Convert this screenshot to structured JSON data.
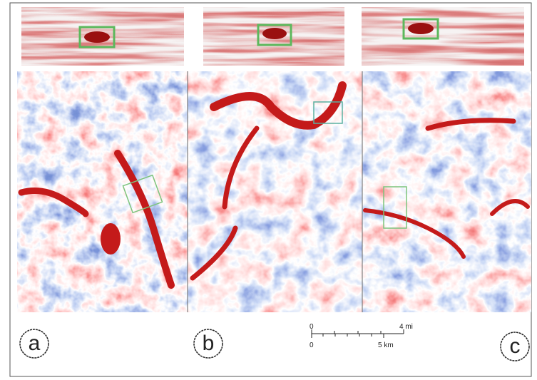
{
  "panels": [
    {
      "label": "a"
    },
    {
      "label": "b"
    },
    {
      "label": "c"
    }
  ],
  "scale_bar": {
    "top": [
      "0",
      "4 mi"
    ],
    "bottom": [
      "0",
      "5 km"
    ]
  }
}
